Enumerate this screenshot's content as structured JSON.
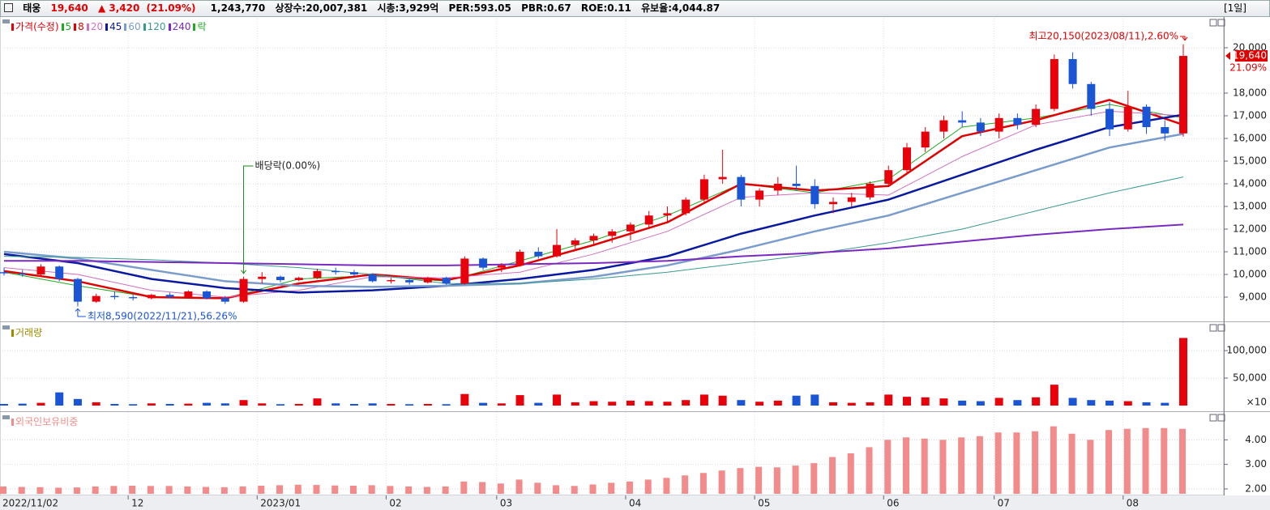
{
  "header": {
    "name": "태웅",
    "price": "19,640",
    "change": "▲ 3,420",
    "change_pct": "(21.09%)",
    "volume": "1,243,770",
    "listed": "상장수:20,007,381",
    "market_cap": "시총:3,929억",
    "per": "PER:593.05",
    "pbr": "PBR:0.67",
    "roe": "ROE:0.11",
    "reserve": "유보율:4,044.87",
    "period": "[1일]"
  },
  "chart_data": [
    {
      "type": "candlestick",
      "title": "가격(수정)",
      "color": "#e8000b",
      "up_color": "#e8000b",
      "down_color": "#1a55d6",
      "categories": [
        "2022/11/02",
        null,
        null,
        null,
        null,
        null,
        null,
        "12",
        null,
        null,
        null,
        null,
        null,
        null,
        "2023/01",
        null,
        null,
        null,
        null,
        null,
        null,
        "02",
        null,
        null,
        null,
        null,
        null,
        "03",
        null,
        null,
        null,
        null,
        null,
        null,
        "04",
        null,
        null,
        null,
        null,
        null,
        null,
        "05",
        null,
        null,
        null,
        null,
        null,
        null,
        "06",
        null,
        null,
        null,
        null,
        null,
        "07",
        null,
        null,
        null,
        null,
        null,
        null,
        "08",
        null,
        null,
        null
      ],
      "open": [
        10100,
        10050,
        10000,
        10350,
        9800,
        8800,
        9050,
        9000,
        8950,
        9100,
        9000,
        9250,
        8950,
        8800,
        9800,
        9900,
        9750,
        9850,
        10150,
        10100,
        10000,
        9700,
        9750,
        9650,
        9850,
        9600,
        10700,
        10300,
        10400,
        11000,
        10800,
        11300,
        11500,
        11700,
        11900,
        12200,
        12600,
        12700,
        13300,
        14200,
        14300,
        13300,
        13700,
        14000,
        13900,
        13100,
        13200,
        13400,
        14000,
        14600,
        15600,
        16300,
        16800,
        16700,
        16300,
        16900,
        16600,
        17300,
        19500,
        18400,
        17300,
        16400,
        17400,
        16500,
        16220
      ],
      "high": [
        10300,
        10200,
        10450,
        10400,
        9850,
        9150,
        9250,
        9100,
        9150,
        9200,
        9300,
        9300,
        9050,
        9900,
        10100,
        9950,
        9900,
        10250,
        10300,
        10200,
        10050,
        9850,
        9800,
        9900,
        9900,
        10800,
        10750,
        10500,
        11100,
        11200,
        12000,
        11600,
        11800,
        12000,
        12300,
        12800,
        13000,
        13400,
        14400,
        15500,
        14400,
        13800,
        14300,
        14800,
        14200,
        13400,
        13600,
        14100,
        14800,
        15800,
        16500,
        17000,
        17200,
        16900,
        17100,
        17100,
        17500,
        19700,
        19800,
        18500,
        17600,
        18100,
        17500,
        16800,
        20150
      ],
      "low": [
        9950,
        9900,
        9950,
        9700,
        8590,
        8750,
        8900,
        8850,
        8900,
        8950,
        8950,
        8900,
        8700,
        8750,
        9600,
        9650,
        9700,
        9800,
        10000,
        9950,
        9650,
        9600,
        9550,
        9600,
        9550,
        9550,
        10200,
        10100,
        10350,
        10700,
        10750,
        11100,
        11300,
        11400,
        11500,
        12000,
        12300,
        12600,
        13200,
        14000,
        13000,
        13000,
        13500,
        13700,
        12900,
        12700,
        13000,
        13300,
        13900,
        14500,
        15400,
        16000,
        16500,
        16100,
        16000,
        16400,
        16500,
        17200,
        18200,
        17000,
        16100,
        16300,
        16200,
        15900,
        16080
      ],
      "close": [
        10050,
        10000,
        10350,
        9800,
        8800,
        9050,
        9000,
        8950,
        9100,
        9000,
        9250,
        8950,
        8800,
        9800,
        9900,
        9750,
        9850,
        10150,
        10100,
        10000,
        9700,
        9750,
        9650,
        9850,
        9600,
        10700,
        10300,
        10400,
        11000,
        10800,
        11300,
        11500,
        11700,
        11900,
        12200,
        12600,
        12700,
        13300,
        14200,
        14300,
        13300,
        13700,
        14000,
        13900,
        13100,
        13200,
        13400,
        14000,
        14600,
        15600,
        16300,
        16800,
        16700,
        16300,
        16900,
        16600,
        17300,
        19500,
        18400,
        17300,
        16400,
        17400,
        16500,
        16220,
        19640
      ],
      "ylim": [
        7930,
        21320
      ],
      "yticks": [
        {
          "value": 9000,
          "label": "9,000"
        },
        {
          "value": 10000,
          "label": "10,000"
        },
        {
          "value": 11000,
          "label": "11,000"
        },
        {
          "value": 12000,
          "label": "12,000"
        },
        {
          "value": 13000,
          "label": "13,000"
        },
        {
          "value": 14000,
          "label": "14,000"
        },
        {
          "value": 15000,
          "label": "15,000"
        },
        {
          "value": 16000,
          "label": "16,000"
        },
        {
          "value": 17000,
          "label": "17,000"
        },
        {
          "value": 18000,
          "label": "18,000"
        },
        {
          "value": 20000,
          "label": "20,000"
        }
      ],
      "moving_averages": {
        "x": [
          0,
          4,
          8,
          12,
          16,
          20,
          24,
          28,
          32,
          36,
          40,
          44,
          48,
          52,
          56,
          60,
          64
        ],
        "series": [
          {
            "name": "5",
            "color": "#22aa22",
            "width": 1,
            "values": [
              10100,
              9500,
              9000,
              8950,
              9800,
              9950,
              9700,
              10600,
              11500,
              12600,
              14000,
              13600,
              14200,
              16500,
              16900,
              17500,
              16900
            ]
          },
          {
            "name": "8",
            "color": "#e00000",
            "width": 2.5,
            "values": [
              10150,
              9700,
              9000,
              8950,
              9600,
              10000,
              9750,
              10400,
              11300,
              12300,
              14000,
              13700,
              13900,
              16100,
              16800,
              17700,
              16600
            ]
          },
          {
            "name": "20",
            "color": "#d070c0",
            "width": 1,
            "values": [
              10300,
              10000,
              9300,
              9000,
              9300,
              9900,
              9850,
              10100,
              10900,
              11900,
              13400,
              13600,
              13500,
              15200,
              16600,
              17200,
              17000
            ]
          },
          {
            "name": "45",
            "color": "#0a1aa0",
            "width": 2.5,
            "values": [
              10900,
              10500,
              9800,
              9400,
              9200,
              9300,
              9500,
              9800,
              10200,
              10800,
              11800,
              12600,
              13300,
              14400,
              15500,
              16500,
              17050
            ]
          },
          {
            "name": "60",
            "color": "#7a9ccc",
            "width": 2.5,
            "values": [
              11000,
              10700,
              10200,
              9700,
              9500,
              9450,
              9500,
              9600,
              9900,
              10400,
              11100,
              11900,
              12600,
              13600,
              14600,
              15600,
              16200
            ]
          },
          {
            "name": "120",
            "color": "#3a9a90",
            "width": 1,
            "values": [
              10800,
              10750,
              10650,
              10500,
              10300,
              10000,
              9600,
              9600,
              9800,
              10100,
              10500,
              10900,
              11400,
              12000,
              12800,
              13600,
              14300
            ]
          },
          {
            "name": "240",
            "color": "#7a2ac0",
            "width": 2,
            "values": [
              10600,
              10600,
              10550,
              10500,
              10450,
              10400,
              10400,
              10450,
              10500,
              10600,
              10800,
              10950,
              11150,
              11450,
              11750,
              12000,
              12200
            ]
          }
        ]
      },
      "legend_extra": {
        "name": "락",
        "color": "#22aa22"
      },
      "annotations": {
        "high": "최고20,150(2023/08/11),2.60%",
        "low": "최저8,590(2022/11/21),56.26%",
        "dividend": "배당락(0.00%)"
      },
      "last_price": {
        "value": 19640,
        "label": "19,640"
      },
      "last_change": "21.09%"
    },
    {
      "type": "bar",
      "title": "거래량",
      "color": "#a08a00",
      "values": [
        3000,
        3500,
        5000,
        24000,
        12000,
        6000,
        3000,
        2500,
        4000,
        3000,
        3500,
        5000,
        4000,
        10000,
        4000,
        2500,
        3000,
        13000,
        4000,
        3000,
        4000,
        3000,
        2500,
        3000,
        2500,
        21000,
        5000,
        4000,
        19000,
        5000,
        20000,
        6000,
        8000,
        7000,
        9000,
        8000,
        7000,
        10000,
        20000,
        18000,
        10000,
        7000,
        9000,
        18000,
        20000,
        6000,
        5000,
        6000,
        20000,
        16000,
        15000,
        13000,
        9000,
        8000,
        14000,
        10000,
        15000,
        38000,
        14000,
        10000,
        9000,
        8000,
        6000,
        5000,
        123000
      ],
      "ylim": [
        0,
        134000
      ],
      "yticks": [
        {
          "value": 50000,
          "label": "50,000"
        },
        {
          "value": 100000,
          "label": "100,000"
        }
      ],
      "unit_label": "×10"
    },
    {
      "type": "bar",
      "title": "외국인보유비중",
      "color": "#f28b8b",
      "values": [
        2.1,
        2.08,
        2.07,
        2.05,
        2.06,
        2.1,
        2.12,
        2.13,
        2.12,
        2.12,
        2.1,
        2.08,
        2.07,
        2.1,
        2.13,
        2.15,
        2.17,
        2.16,
        2.14,
        2.13,
        2.15,
        2.12,
        2.1,
        2.08,
        2.1,
        2.3,
        2.28,
        2.22,
        2.38,
        2.25,
        2.15,
        2.12,
        2.18,
        2.25,
        2.3,
        2.38,
        2.45,
        2.55,
        2.65,
        2.75,
        2.85,
        2.9,
        2.88,
        2.95,
        3.05,
        3.3,
        3.45,
        3.7,
        4.0,
        4.1,
        4.05,
        4.0,
        4.1,
        4.15,
        4.3,
        4.3,
        4.35,
        4.55,
        4.25,
        4.0,
        4.4,
        4.45,
        4.48,
        4.48,
        4.45
      ],
      "ylim": [
        1.8,
        4.77
      ],
      "yticks": [
        {
          "value": 2,
          "label": "2.00"
        },
        {
          "value": 3,
          "label": "3.00"
        },
        {
          "value": 4,
          "label": "4.00"
        }
      ]
    }
  ]
}
